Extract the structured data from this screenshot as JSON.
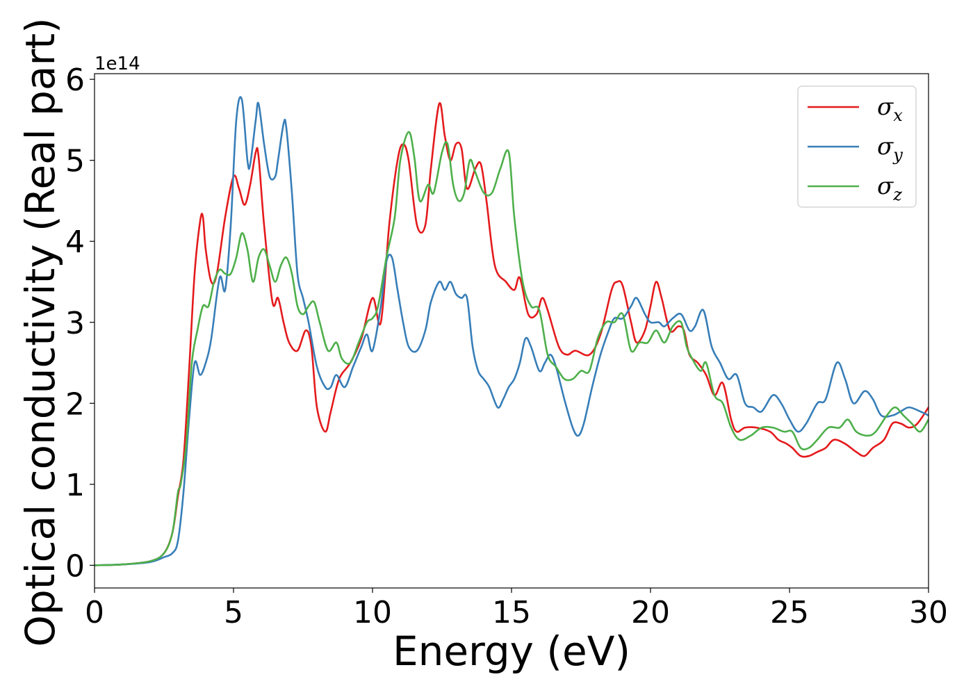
{
  "chart_data": {
    "type": "line",
    "title": "",
    "xlabel": "Energy (eV)",
    "ylabel": "Optical conductivity (Real part)",
    "y_offset_label": "1e14",
    "xlim": [
      0,
      30
    ],
    "ylim": [
      -0.28,
      6.07
    ],
    "xticks": [
      0,
      5,
      10,
      15,
      20,
      25,
      30
    ],
    "xtick_labels": [
      "0",
      "5",
      "10",
      "15",
      "20",
      "25",
      "30"
    ],
    "yticks": [
      0,
      1,
      2,
      3,
      4,
      5,
      6
    ],
    "ytick_labels": [
      "0",
      "1",
      "2",
      "3",
      "4",
      "5",
      "6"
    ],
    "grid": false,
    "legend_position": "top-right",
    "series": [
      {
        "name": "σx",
        "name_base": "σ",
        "name_sub": "x",
        "color": "#e41a1c",
        "x": [
          0,
          1,
          2,
          2.5,
          2.8,
          3.0,
          3.2,
          3.4,
          3.6,
          3.8,
          3.9,
          4.0,
          4.2,
          4.4,
          4.7,
          5.0,
          5.2,
          5.4,
          5.6,
          5.8,
          5.9,
          6.1,
          6.4,
          6.6,
          6.8,
          7.0,
          7.3,
          7.6,
          7.8,
          8.0,
          8.3,
          8.5,
          8.8,
          9.2,
          9.6,
          10.0,
          10.3,
          10.6,
          10.9,
          11.1,
          11.3,
          11.6,
          11.9,
          12.1,
          12.4,
          12.6,
          12.8,
          13.0,
          13.2,
          13.4,
          13.7,
          13.9,
          14.1,
          14.4,
          14.8,
          15.1,
          15.3,
          15.6,
          15.9,
          16.1,
          16.3,
          16.7,
          17.0,
          17.3,
          17.8,
          18.2,
          18.6,
          18.8,
          19.0,
          19.3,
          19.5,
          19.8,
          20.0,
          20.2,
          20.4,
          20.7,
          21.0,
          21.2,
          21.4,
          21.7,
          22.0,
          22.3,
          22.6,
          22.9,
          23.1,
          23.4,
          23.8,
          24.3,
          24.6,
          24.9,
          25.1,
          25.4,
          25.7,
          26.0,
          26.3,
          26.6,
          27.0,
          27.4,
          27.7,
          28.0,
          28.4,
          28.7,
          29.0,
          29.3,
          29.6,
          30.0
        ],
        "y": [
          0,
          0.01,
          0.05,
          0.15,
          0.4,
          0.85,
          1.3,
          2.4,
          3.6,
          4.25,
          4.3,
          3.9,
          3.5,
          3.6,
          4.3,
          4.8,
          4.65,
          4.45,
          4.7,
          5.1,
          5.05,
          4.2,
          3.25,
          3.3,
          3.0,
          2.75,
          2.65,
          2.9,
          2.7,
          1.95,
          1.65,
          1.9,
          2.3,
          2.5,
          2.8,
          3.3,
          3.0,
          4.2,
          5.0,
          5.2,
          5.0,
          4.2,
          4.2,
          4.9,
          5.7,
          5.3,
          5.0,
          5.2,
          5.15,
          4.65,
          4.9,
          4.95,
          4.5,
          3.7,
          3.5,
          3.4,
          3.55,
          3.1,
          3.1,
          3.3,
          3.15,
          2.7,
          2.6,
          2.65,
          2.6,
          2.85,
          3.4,
          3.5,
          3.45,
          3.0,
          2.75,
          2.9,
          3.2,
          3.5,
          3.3,
          2.9,
          2.95,
          2.9,
          2.6,
          2.5,
          2.35,
          2.1,
          2.25,
          1.8,
          1.65,
          1.7,
          1.7,
          1.65,
          1.55,
          1.5,
          1.45,
          1.35,
          1.35,
          1.4,
          1.45,
          1.55,
          1.5,
          1.4,
          1.35,
          1.45,
          1.55,
          1.75,
          1.75,
          1.7,
          1.75,
          1.95
        ]
      },
      {
        "name": "σy",
        "name_base": "σ",
        "name_sub": "y",
        "color": "#377eb8",
        "x": [
          0,
          1,
          2,
          2.5,
          2.8,
          3.0,
          3.2,
          3.4,
          3.6,
          3.8,
          4.0,
          4.2,
          4.5,
          4.7,
          4.9,
          5.1,
          5.3,
          5.5,
          5.6,
          5.8,
          5.9,
          6.1,
          6.3,
          6.5,
          6.6,
          6.8,
          6.9,
          7.1,
          7.3,
          7.5,
          7.7,
          8.0,
          8.3,
          8.5,
          8.7,
          9.0,
          9.3,
          9.6,
          9.8,
          10.0,
          10.3,
          10.5,
          10.7,
          10.9,
          11.1,
          11.3,
          11.6,
          11.9,
          12.1,
          12.4,
          12.6,
          12.8,
          13.0,
          13.2,
          13.4,
          13.6,
          13.8,
          14.0,
          14.2,
          14.5,
          14.7,
          14.9,
          15.1,
          15.3,
          15.5,
          15.7,
          16.0,
          16.2,
          16.4,
          16.6,
          16.9,
          17.2,
          17.4,
          17.6,
          17.9,
          18.2,
          18.5,
          18.7,
          19.0,
          19.3,
          19.5,
          19.8,
          20.0,
          20.3,
          20.5,
          20.8,
          21.1,
          21.4,
          21.6,
          21.9,
          22.2,
          22.5,
          22.8,
          23.1,
          23.4,
          23.7,
          24.0,
          24.4,
          24.7,
          25.0,
          25.3,
          25.6,
          26.0,
          26.3,
          26.7,
          27.0,
          27.3,
          27.7,
          28.0,
          28.3,
          28.7,
          29.0,
          29.3,
          29.7,
          30.0
        ],
        "y": [
          0,
          0.01,
          0.04,
          0.1,
          0.15,
          0.3,
          0.9,
          1.8,
          2.5,
          2.35,
          2.5,
          2.8,
          3.55,
          3.4,
          4.2,
          5.5,
          5.75,
          5.0,
          4.95,
          5.5,
          5.7,
          5.2,
          4.8,
          4.8,
          5.0,
          5.45,
          5.4,
          4.6,
          3.6,
          3.3,
          3.0,
          2.45,
          2.2,
          2.2,
          2.35,
          2.2,
          2.45,
          2.7,
          2.85,
          2.65,
          3.2,
          3.75,
          3.8,
          3.4,
          3.0,
          2.7,
          2.65,
          2.9,
          3.25,
          3.5,
          3.4,
          3.5,
          3.35,
          3.3,
          3.3,
          2.7,
          2.4,
          2.3,
          2.2,
          1.95,
          2.05,
          2.2,
          2.3,
          2.5,
          2.8,
          2.7,
          2.4,
          2.5,
          2.6,
          2.45,
          2.05,
          1.7,
          1.6,
          1.75,
          2.2,
          2.6,
          2.9,
          3.05,
          3.05,
          3.2,
          3.3,
          3.1,
          3.0,
          3.0,
          2.95,
          3.05,
          3.1,
          2.9,
          2.95,
          3.15,
          2.7,
          2.5,
          2.3,
          2.35,
          2.0,
          1.95,
          1.9,
          2.1,
          2.0,
          1.8,
          1.65,
          1.75,
          2.0,
          2.05,
          2.5,
          2.3,
          2.0,
          2.15,
          2.05,
          1.85,
          1.85,
          1.9,
          1.95,
          1.9,
          1.85
        ]
      },
      {
        "name": "σz",
        "name_base": "σ",
        "name_sub": "z",
        "color": "#4daf4a",
        "x": [
          0,
          1,
          2,
          2.5,
          2.8,
          3.0,
          3.1,
          3.3,
          3.5,
          3.7,
          3.9,
          4.1,
          4.3,
          4.5,
          4.7,
          4.9,
          5.1,
          5.3,
          5.5,
          5.7,
          5.9,
          6.1,
          6.3,
          6.5,
          6.7,
          6.9,
          7.1,
          7.3,
          7.5,
          7.7,
          7.9,
          8.1,
          8.4,
          8.7,
          8.9,
          9.2,
          9.5,
          9.8,
          10.0,
          10.2,
          10.5,
          10.8,
          11.0,
          11.3,
          11.5,
          11.7,
          12.0,
          12.2,
          12.5,
          12.7,
          12.9,
          13.1,
          13.3,
          13.5,
          13.7,
          14.0,
          14.3,
          14.6,
          14.9,
          15.1,
          15.4,
          15.7,
          16.0,
          16.3,
          16.6,
          16.9,
          17.2,
          17.5,
          17.8,
          18.1,
          18.4,
          18.7,
          19.0,
          19.3,
          19.6,
          19.9,
          20.2,
          20.5,
          20.8,
          21.1,
          21.3,
          21.5,
          21.8,
          22.0,
          22.3,
          22.6,
          22.9,
          23.2,
          23.6,
          24.0,
          24.4,
          24.8,
          25.1,
          25.4,
          25.7,
          26.0,
          26.4,
          26.8,
          27.1,
          27.4,
          27.8,
          28.1,
          28.5,
          28.8,
          29.1,
          29.4,
          29.7,
          30.0
        ],
        "y": [
          0,
          0.01,
          0.05,
          0.15,
          0.4,
          0.9,
          1.0,
          1.5,
          2.5,
          2.9,
          3.2,
          3.2,
          3.5,
          3.65,
          3.6,
          3.6,
          3.8,
          4.1,
          3.9,
          3.5,
          3.8,
          3.9,
          3.7,
          3.5,
          3.7,
          3.8,
          3.6,
          3.2,
          3.1,
          3.2,
          3.25,
          3.0,
          2.65,
          2.75,
          2.55,
          2.5,
          2.75,
          3.0,
          3.05,
          3.2,
          3.8,
          4.3,
          5.0,
          5.35,
          5.05,
          4.5,
          4.7,
          4.6,
          5.1,
          5.2,
          4.7,
          4.5,
          4.6,
          5.0,
          4.85,
          4.6,
          4.6,
          4.9,
          5.1,
          4.3,
          3.5,
          3.2,
          3.15,
          2.6,
          2.45,
          2.3,
          2.3,
          2.4,
          2.4,
          2.8,
          3.0,
          3.0,
          3.1,
          2.65,
          2.75,
          2.75,
          2.9,
          2.75,
          2.95,
          3.0,
          2.7,
          2.55,
          2.4,
          2.5,
          2.1,
          2.0,
          1.7,
          1.55,
          1.6,
          1.7,
          1.7,
          1.65,
          1.65,
          1.45,
          1.45,
          1.55,
          1.7,
          1.7,
          1.8,
          1.65,
          1.6,
          1.65,
          1.85,
          1.95,
          1.85,
          1.75,
          1.65,
          1.8
        ]
      }
    ]
  }
}
